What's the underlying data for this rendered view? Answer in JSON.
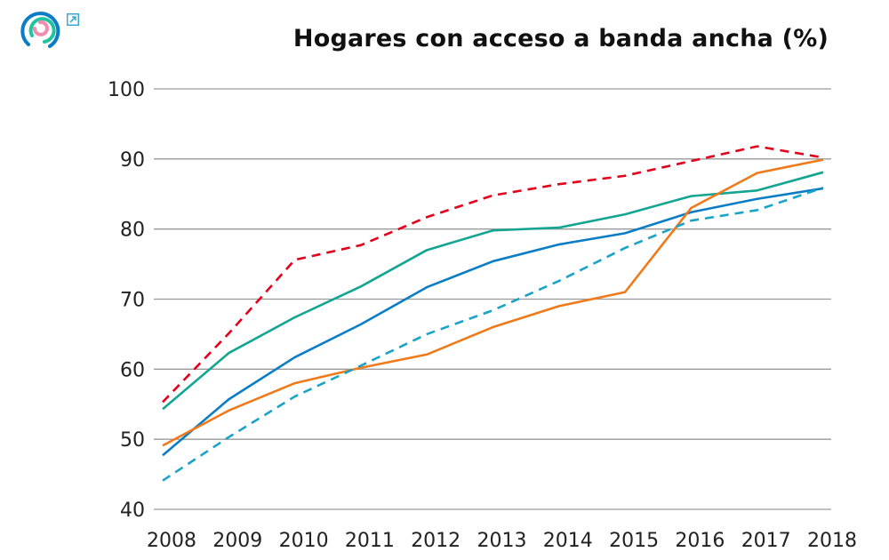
{
  "chart_data": {
    "type": "line",
    "title": "Hogares con acceso a banda ancha (%)",
    "xlabel": "",
    "ylabel": "",
    "x": [
      2008,
      2009,
      2010,
      2011,
      2012,
      2013,
      2014,
      2015,
      2016,
      2017,
      2018
    ],
    "x_tick_labels": [
      "2008",
      "2009",
      "2010",
      "2011",
      "2012",
      "2013",
      "2014",
      "2015",
      "2016",
      "2017",
      "2018"
    ],
    "ylim": [
      40,
      100
    ],
    "y_ticks": [
      40,
      50,
      60,
      70,
      80,
      90,
      100
    ],
    "y_tick_labels": [
      "40",
      "50",
      "60",
      "70",
      "80",
      "90",
      "100"
    ],
    "grid": "horizontal",
    "legend": "none",
    "series": [
      {
        "color": "#e3001b",
        "style": "dashed",
        "values": [
          55.3,
          65.1,
          75.6,
          77.7,
          81.7,
          84.8,
          86.4,
          87.6,
          89.7,
          91.8,
          90.2
        ]
      },
      {
        "color": "#13a592",
        "style": "solid",
        "values": [
          54.3,
          62.3,
          67.4,
          71.8,
          77.0,
          79.8,
          80.2,
          82.1,
          84.7,
          85.5,
          88.1
        ]
      },
      {
        "color": "#0b7dc6",
        "style": "solid",
        "values": [
          47.7,
          55.7,
          61.7,
          66.4,
          71.7,
          75.4,
          77.8,
          79.4,
          82.4,
          84.3,
          85.8
        ]
      },
      {
        "color": "#f07a1a",
        "style": "solid",
        "values": [
          49.1,
          54.1,
          58.0,
          60.2,
          62.1,
          66.0,
          69.0,
          71.0,
          83.0,
          88.0,
          89.9
        ]
      },
      {
        "color": "#1aa3c8",
        "style": "dashed",
        "values": [
          44.1,
          50.3,
          56.1,
          60.5,
          65.0,
          68.4,
          72.6,
          77.3,
          81.2,
          82.7,
          85.9
        ]
      }
    ]
  },
  "icons": {
    "logo": "circular-rings-logo",
    "external": "external-link-icon"
  }
}
